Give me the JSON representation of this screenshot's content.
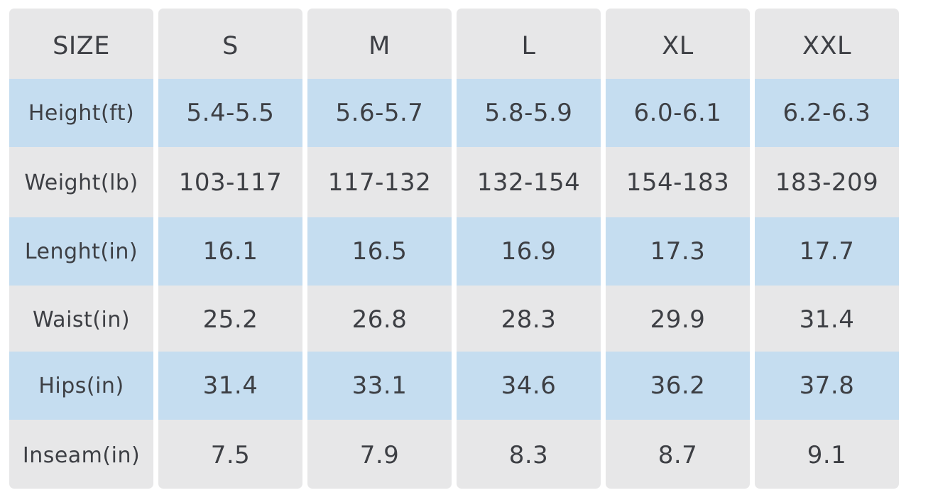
{
  "size_chart": {
    "header": {
      "label": "SIZE",
      "sizes": [
        "S",
        "M",
        "L",
        "XL",
        "XXL"
      ]
    },
    "rows": [
      {
        "label": "Height(ft)",
        "values": [
          "5.4-5.5",
          "5.6-5.7",
          "5.8-5.9",
          "6.0-6.1",
          "6.2-6.3"
        ]
      },
      {
        "label": "Weight(lb)",
        "values": [
          "103-117",
          "117-132",
          "132-154",
          "154-183",
          "183-209"
        ]
      },
      {
        "label": "Lenght(in)",
        "values": [
          "16.1",
          "16.5",
          "16.9",
          "17.3",
          "17.7"
        ]
      },
      {
        "label": "Waist(in)",
        "values": [
          "25.2",
          "26.8",
          "28.3",
          "29.9",
          "31.4"
        ]
      },
      {
        "label": "Hips(in)",
        "values": [
          "31.4",
          "33.1",
          "34.6",
          "36.2",
          "37.8"
        ]
      },
      {
        "label": "Inseam(in)",
        "values": [
          "7.5",
          "7.9",
          "8.3",
          "8.7",
          "9.1"
        ]
      }
    ],
    "colors": {
      "cell_background": "#e7e7e8",
      "highlight_row": "#c5ddf0",
      "text": "#3d3f44"
    }
  }
}
